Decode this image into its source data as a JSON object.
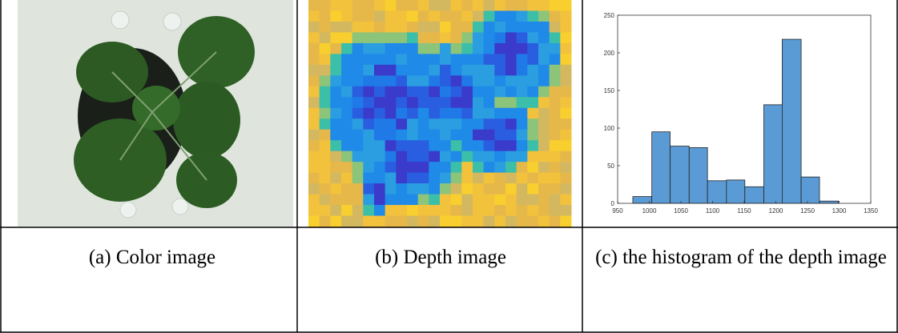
{
  "panels": [
    {
      "caption": "(a)  Color image"
    },
    {
      "caption": "(b)  Depth image"
    },
    {
      "caption": "(c) the histogram of the depth image"
    }
  ],
  "chart_data": {
    "type": "histogram",
    "color": "#5b9bd5",
    "bins": [
      974,
      1004,
      1033,
      1063,
      1092,
      1122,
      1151,
      1181,
      1210,
      1240,
      1269,
      1299
    ],
    "values": [
      9,
      95,
      76,
      74,
      30,
      31,
      22,
      131,
      218,
      35,
      3
    ],
    "xlim": [
      950,
      1350
    ],
    "xticks": [
      950,
      1000,
      1050,
      1100,
      1150,
      1200,
      1250,
      1300,
      1350
    ],
    "ylim": [
      0,
      250
    ],
    "yticks": [
      0,
      50,
      100,
      150,
      200,
      250
    ]
  }
}
